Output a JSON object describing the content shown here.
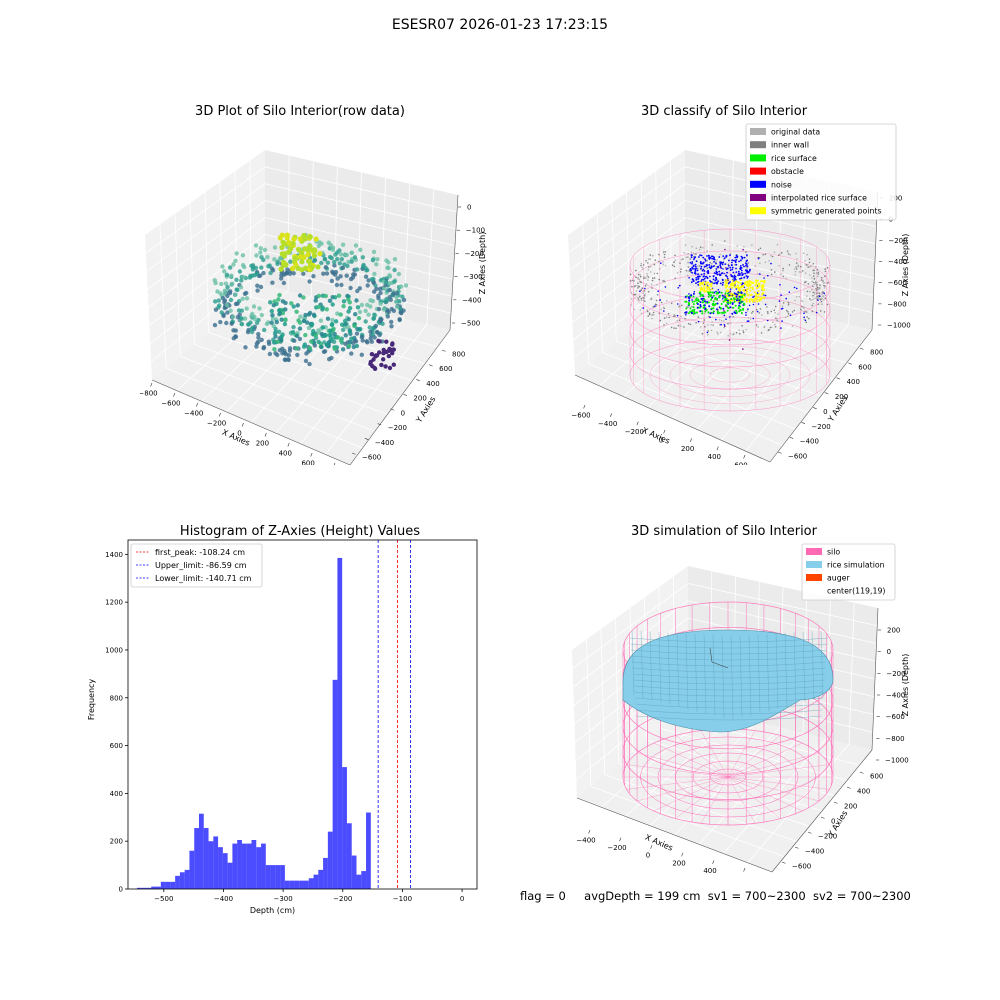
{
  "suptitle": "ESESR07 2026-01-23 17:23:15",
  "panels": {
    "raw": {
      "title": "3D Plot of Silo Interior(row data)",
      "xlabel": "X Axies",
      "ylabel": "Y Axies",
      "zlabel": "Z Axies (Depth)",
      "xticks": [
        "−800",
        "−600",
        "−400",
        "−200",
        "0",
        "200",
        "400",
        "600",
        "800"
      ],
      "yticks": [
        "−600",
        "−400",
        "−200",
        "0",
        "200",
        "400",
        "600",
        "800"
      ],
      "zticks": [
        "0",
        "−100",
        "−200",
        "−300",
        "−400",
        "−500"
      ]
    },
    "classify": {
      "title": "3D classify of Silo Interior",
      "xlabel": "X Axies",
      "ylabel": "Y Axies",
      "zlabel": "Z Axies (Depth)",
      "xticks": [
        "−600",
        "−400",
        "−200",
        "0",
        "200",
        "400",
        "600"
      ],
      "yticks": [
        "−600",
        "−400",
        "−200",
        "0",
        "200",
        "400",
        "600",
        "800"
      ],
      "zticks": [
        "200",
        "0",
        "−200",
        "−400",
        "−600",
        "−800",
        "−1000"
      ],
      "legend": [
        {
          "label": "original data",
          "color": "#b0b0b0"
        },
        {
          "label": "inner wall",
          "color": "#808080"
        },
        {
          "label": "rice surface",
          "color": "#00ee00"
        },
        {
          "label": "obstacle",
          "color": "#ff0000"
        },
        {
          "label": "noise",
          "color": "#0000ff"
        },
        {
          "label": "interpolated rice surface",
          "color": "#800080"
        },
        {
          "label": "symmetric generated points",
          "color": "#ffff00"
        }
      ]
    },
    "sim": {
      "title": "3D simulation of Silo Interior",
      "xlabel": "X Axies",
      "ylabel": "Y Axies",
      "zlabel": "Z Axies (Depth)",
      "xticks": [
        "−400",
        "−200",
        "0",
        "200",
        "400",
        "600"
      ],
      "yticks": [
        "−600",
        "−400",
        "−200",
        "0",
        "200",
        "400",
        "600"
      ],
      "zticks": [
        "200",
        "0",
        "−200",
        "−400",
        "−600",
        "−800",
        "−1000"
      ],
      "legend": [
        {
          "label": "silo",
          "color": "#ff69b4"
        },
        {
          "label": "rice simulation",
          "color": "#87ceeb"
        },
        {
          "label": "auger",
          "color": "#ff4500"
        },
        {
          "label": "center(119,19)",
          "color": "none"
        }
      ]
    }
  },
  "chart_data": {
    "type": "bar",
    "title": "Histogram of Z-Axies (Height) Values",
    "xlabel": "Depth (cm)",
    "ylabel": "Frequency",
    "xlim": [
      -560,
      25
    ],
    "ylim": [
      0,
      1460
    ],
    "xticks": [
      -500,
      -400,
      -300,
      -200,
      -100,
      0
    ],
    "yticks": [
      0,
      200,
      400,
      600,
      800,
      1000,
      1200,
      1400
    ],
    "bar_color": "#0000ff",
    "bins": [
      [
        -545,
        -537,
        5
      ],
      [
        -537,
        -529,
        5
      ],
      [
        -529,
        -521,
        5
      ],
      [
        -521,
        -513,
        10
      ],
      [
        -513,
        -505,
        10
      ],
      [
        -505,
        -497,
        30
      ],
      [
        -497,
        -489,
        30
      ],
      [
        -489,
        -481,
        30
      ],
      [
        -481,
        -473,
        55
      ],
      [
        -473,
        -465,
        70
      ],
      [
        -465,
        -457,
        80
      ],
      [
        -457,
        -449,
        160
      ],
      [
        -449,
        -441,
        255
      ],
      [
        -441,
        -433,
        315
      ],
      [
        -433,
        -425,
        255
      ],
      [
        -425,
        -417,
        200
      ],
      [
        -417,
        -409,
        220
      ],
      [
        -409,
        -401,
        175
      ],
      [
        -401,
        -393,
        150
      ],
      [
        -393,
        -385,
        110
      ],
      [
        -385,
        -377,
        190
      ],
      [
        -377,
        -369,
        205
      ],
      [
        -369,
        -361,
        190
      ],
      [
        -361,
        -353,
        190
      ],
      [
        -353,
        -345,
        205
      ],
      [
        -345,
        -337,
        175
      ],
      [
        -337,
        -329,
        190
      ],
      [
        -329,
        -321,
        100
      ],
      [
        -321,
        -313,
        100
      ],
      [
        -313,
        -305,
        100
      ],
      [
        -305,
        -297,
        100
      ],
      [
        -297,
        -289,
        35
      ],
      [
        -289,
        -281,
        35
      ],
      [
        -281,
        -273,
        35
      ],
      [
        -273,
        -265,
        35
      ],
      [
        -265,
        -257,
        35
      ],
      [
        -257,
        -249,
        45
      ],
      [
        -249,
        -241,
        60
      ],
      [
        -241,
        -233,
        80
      ],
      [
        -233,
        -225,
        130
      ],
      [
        -225,
        -217,
        240
      ],
      [
        -217,
        -209,
        875
      ],
      [
        -209,
        -201,
        1385
      ],
      [
        -201,
        -193,
        510
      ],
      [
        -193,
        -185,
        275
      ],
      [
        -185,
        -177,
        140
      ],
      [
        -177,
        -169,
        60
      ],
      [
        -169,
        -161,
        75
      ],
      [
        -161,
        -153,
        320
      ]
    ],
    "vlines": [
      {
        "label": "first_peak: -108.24 cm",
        "x": -108.24,
        "color": "#ff0000"
      },
      {
        "label": "Upper_limit: -86.59 cm",
        "x": -86.59,
        "color": "#0000ff"
      },
      {
        "label": "Lower_limit: -140.71 cm",
        "x": -140.71,
        "color": "#0000ff"
      }
    ]
  },
  "footer": {
    "flag": "flag = 0",
    "avg": "avgDepth = 199 cm",
    "sv1": "sv1 = 700~2300",
    "sv2": "sv2 = 700~2300"
  }
}
